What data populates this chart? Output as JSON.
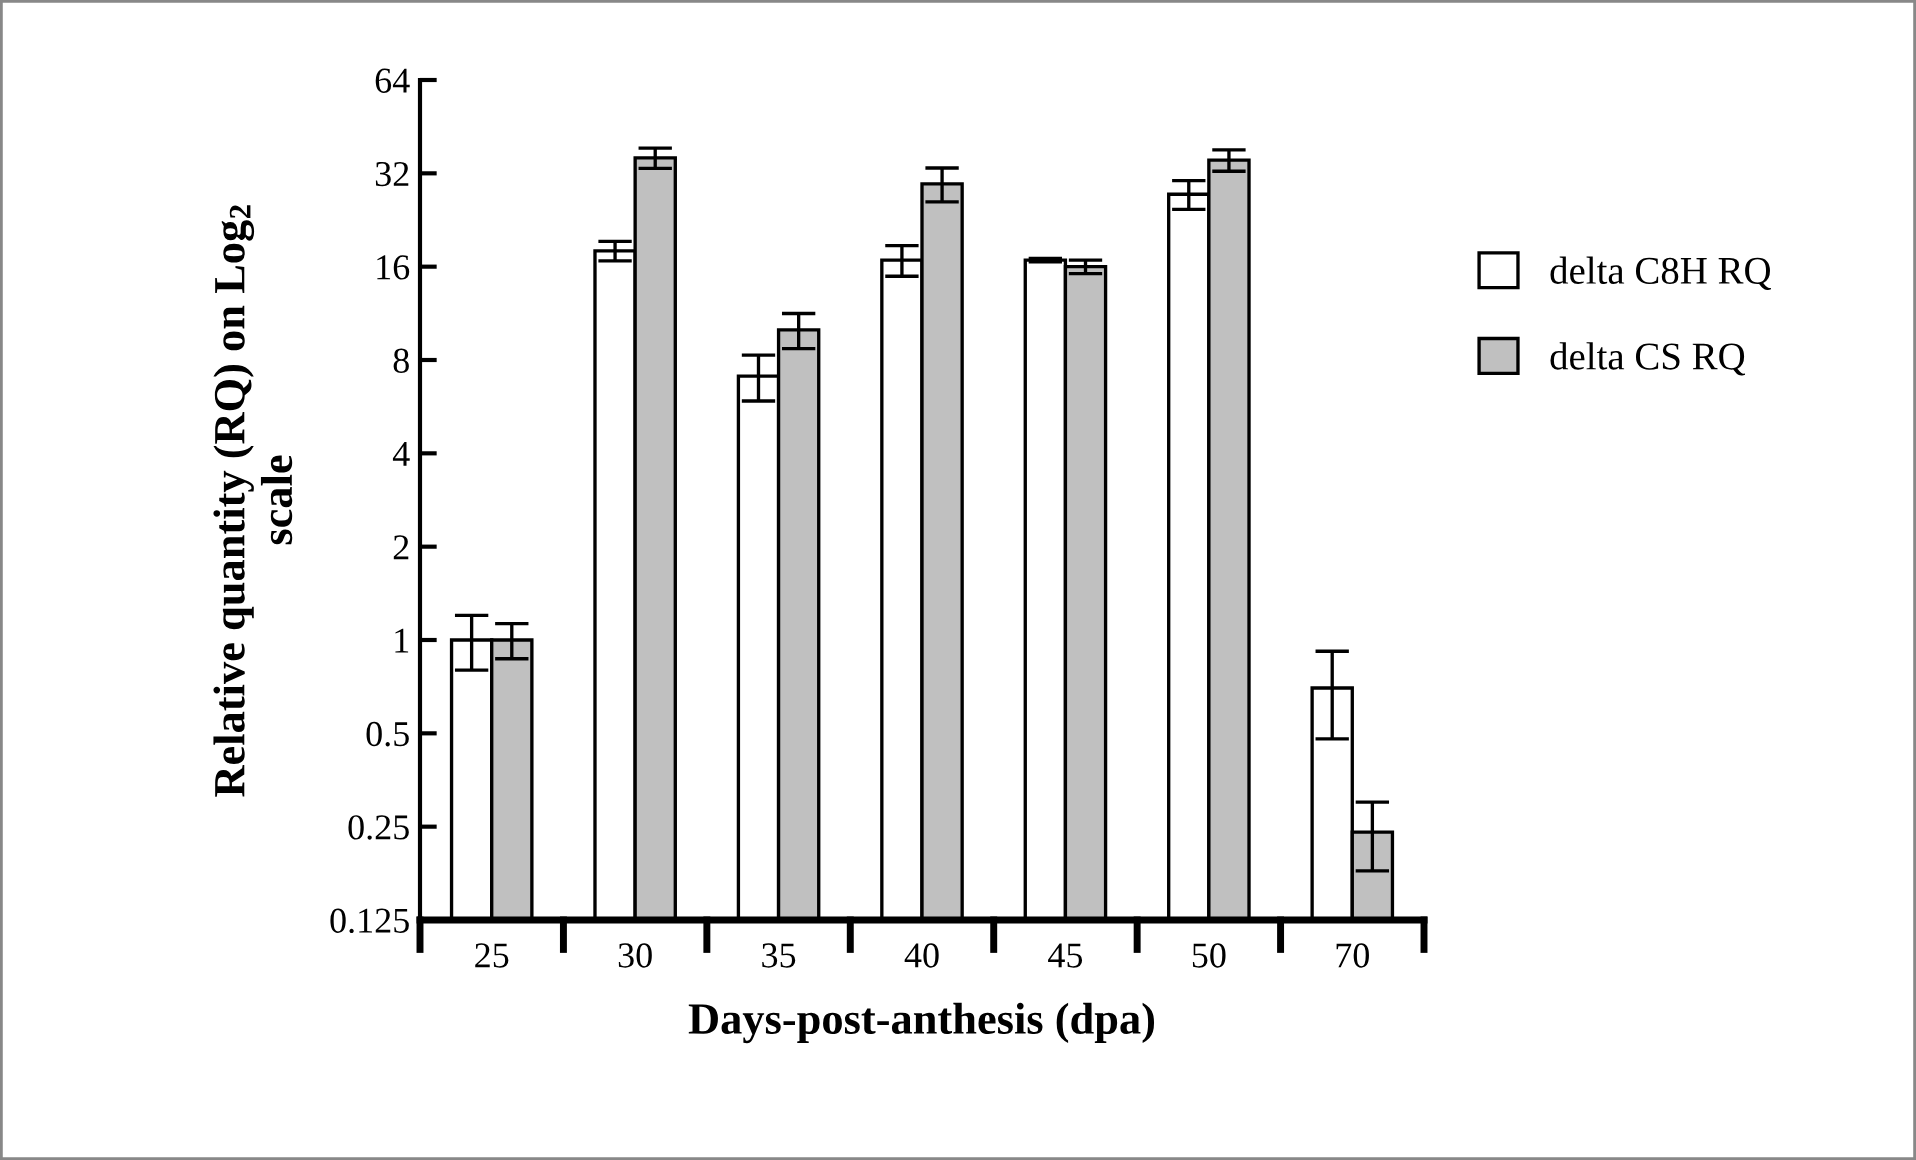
{
  "chart_data": {
    "type": "bar",
    "xlabel": "Days-post-anthesis (dpa)",
    "ylabel": "Relative quantity (RQ) on Log$_{2}$\nscale",
    "categories": [
      "25",
      "30",
      "35",
      "40",
      "45",
      "50",
      "70"
    ],
    "series": [
      {
        "name": "delta C8H RQ",
        "color": "#ffffff",
        "values": [
          1.0,
          18.0,
          7.1,
          16.8,
          16.8,
          27.4,
          0.7
        ],
        "errors": [
          0.2,
          1.3,
          1.2,
          1.9,
          0.2,
          2.9,
          0.22
        ]
      },
      {
        "name": "delta CS RQ",
        "color": "#c0c0c0",
        "values": [
          1.0,
          35.9,
          10.0,
          29.6,
          16.0,
          35.3,
          0.24
        ],
        "errors": [
          0.13,
          2.7,
          1.3,
          3.7,
          0.8,
          2.8,
          0.06
        ]
      }
    ],
    "log": true,
    "ylim": [
      0.125,
      64
    ],
    "yticks": [
      0.125,
      0.25,
      0.5,
      1,
      2,
      4,
      8,
      16,
      32,
      64
    ],
    "grid": false,
    "legend": "right"
  }
}
